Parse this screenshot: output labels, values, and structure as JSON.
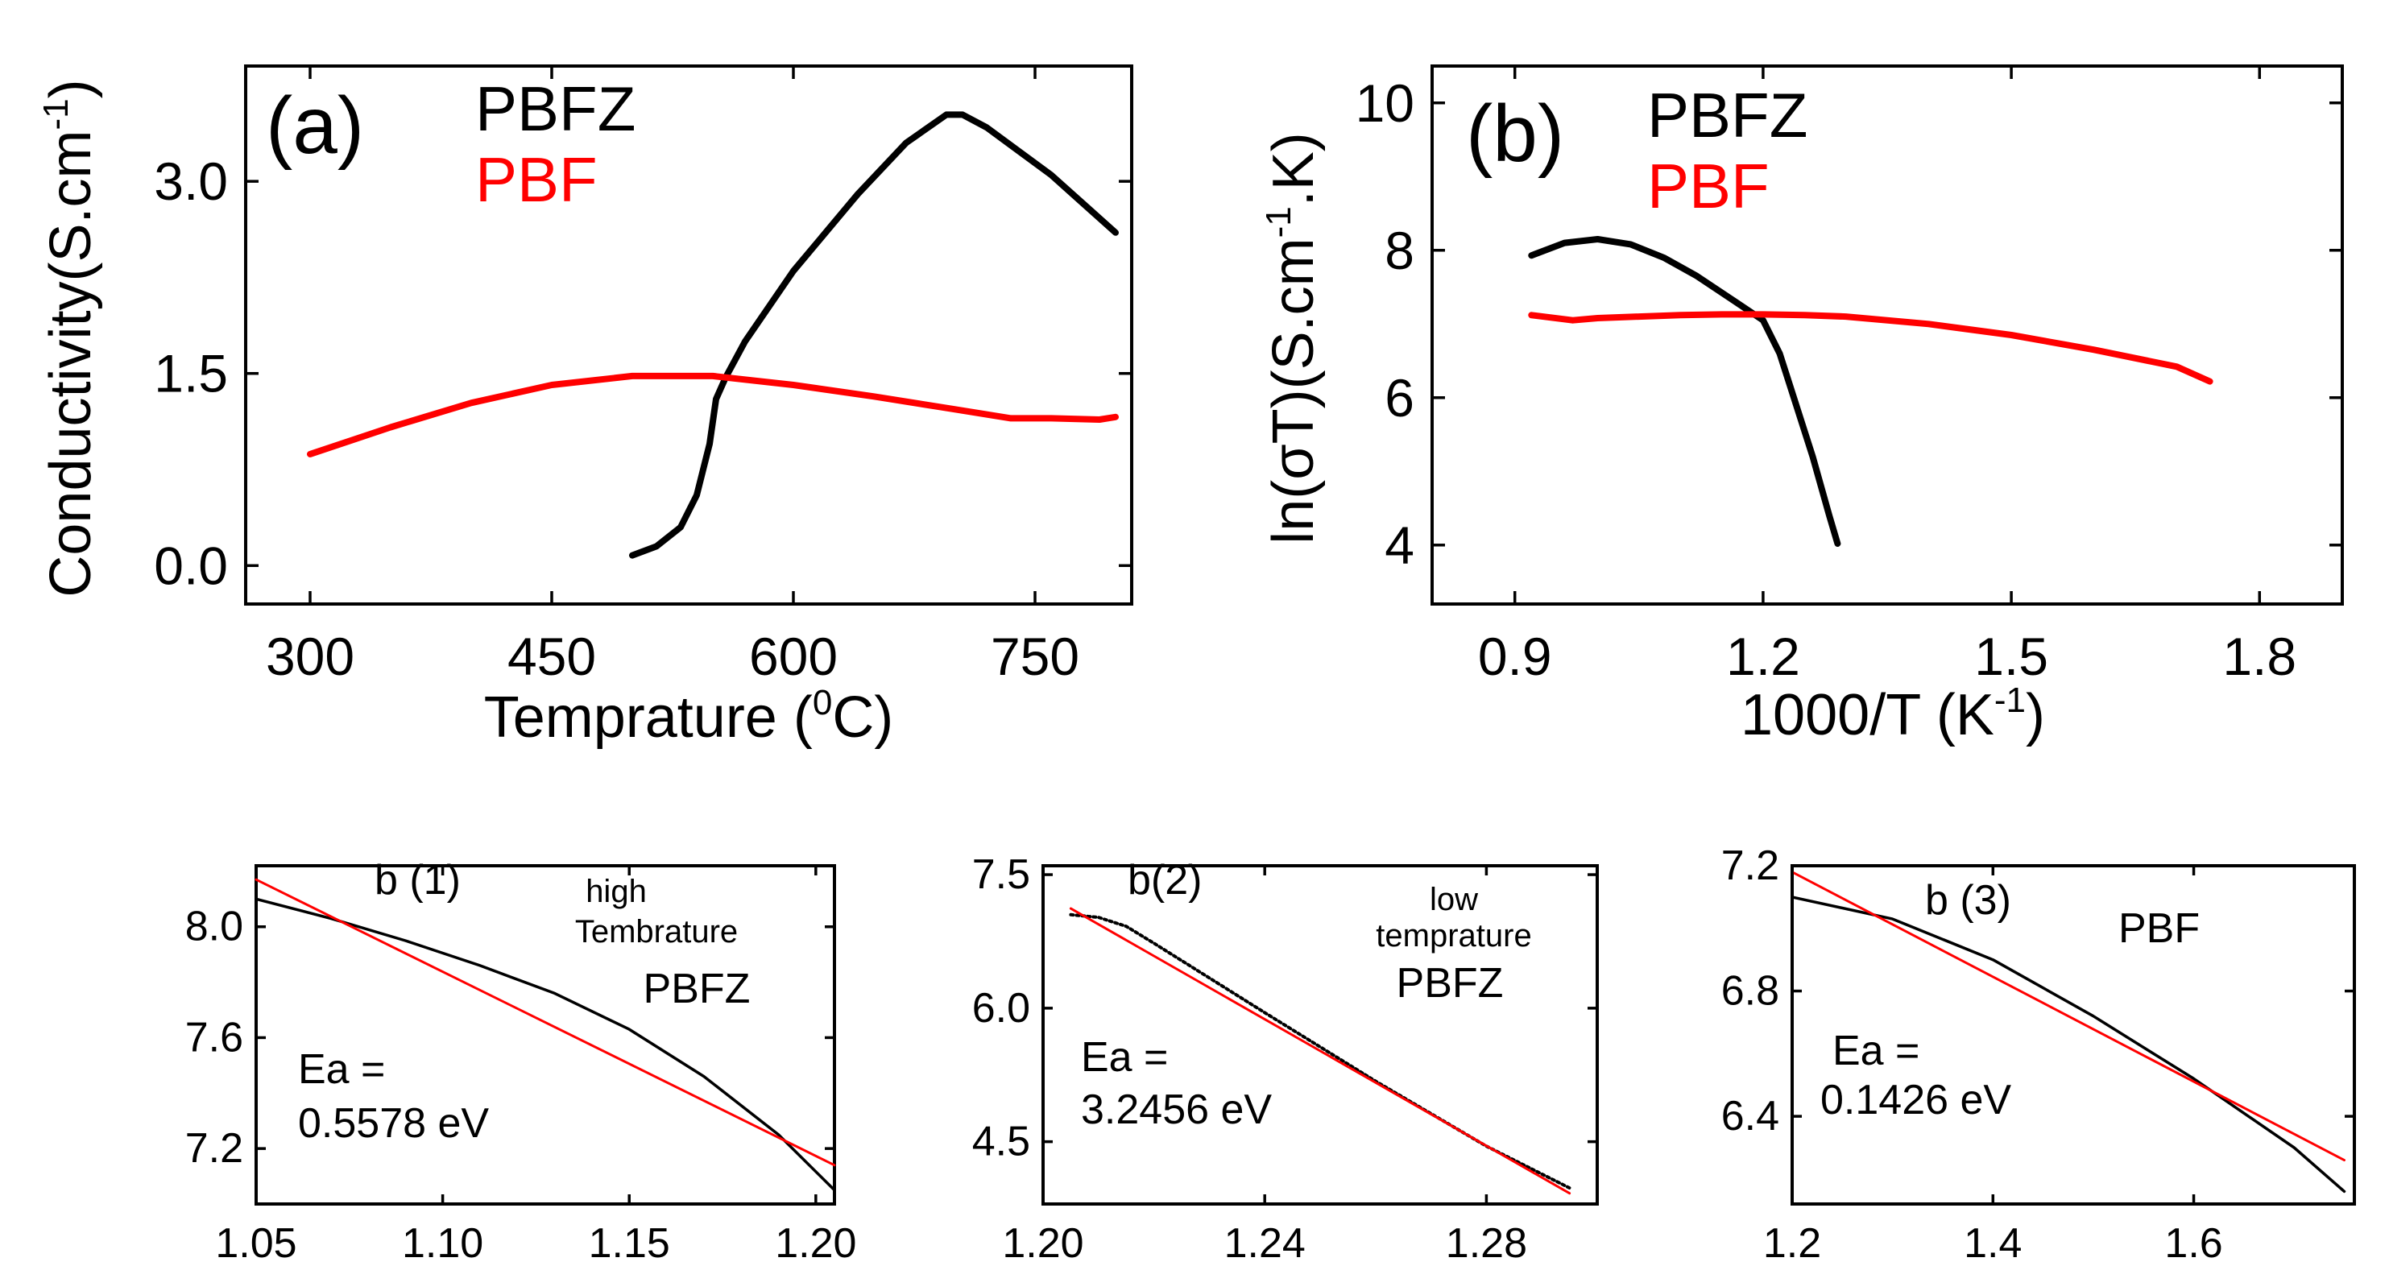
{
  "colors": {
    "pbfz": "#000000",
    "pbf": "#ff0000",
    "fit": "#ff0000",
    "frame": "#000000"
  },
  "chart_data": [
    {
      "id": "a",
      "type": "line",
      "panel_label": "(a)",
      "xlabel": "Temprature (",
      "xlabel_sup": "0",
      "xlabel_tail": "C)",
      "ylabel": "Conductivity(S.cm",
      "ylabel_sup": "-1",
      "ylabel_tail": ")",
      "xlim": [
        260,
        810
      ],
      "ylim": [
        -0.3,
        3.9
      ],
      "xticks": [
        "300",
        "450",
        "600",
        "750"
      ],
      "yticks": [
        "0.0",
        "1.5",
        "3.0"
      ],
      "legend": [
        "PBFZ",
        "PBF"
      ],
      "series": [
        {
          "name": "PBFZ",
          "color": "#000000",
          "x": [
            500,
            515,
            530,
            540,
            548,
            552,
            558,
            570,
            600,
            640,
            670,
            695,
            705,
            720,
            760,
            800
          ],
          "y": [
            0.08,
            0.15,
            0.3,
            0.55,
            0.95,
            1.3,
            1.47,
            1.75,
            2.3,
            2.9,
            3.3,
            3.52,
            3.52,
            3.42,
            3.05,
            2.6
          ]
        },
        {
          "name": "PBF",
          "color": "#ff0000",
          "x": [
            300,
            350,
            400,
            450,
            500,
            550,
            600,
            650,
            700,
            735,
            760,
            790,
            800
          ],
          "y": [
            0.87,
            1.08,
            1.27,
            1.41,
            1.48,
            1.48,
            1.41,
            1.32,
            1.22,
            1.15,
            1.15,
            1.14,
            1.16
          ]
        }
      ]
    },
    {
      "id": "b",
      "type": "line",
      "panel_label": "(b)",
      "xlabel": "1000/T (K",
      "xlabel_sup": "-1",
      "xlabel_tail": ")",
      "ylabel": "ln(σT)(S.cm",
      "ylabel_sup": "-1",
      "ylabel_tail": ".K)",
      "xlim": [
        0.8,
        1.9
      ],
      "ylim": [
        3.2,
        10.5
      ],
      "xticks": [
        "0.9",
        "1.2",
        "1.5",
        "1.8"
      ],
      "yticks": [
        "4",
        "6",
        "8",
        "10"
      ],
      "legend": [
        "PBFZ",
        "PBF"
      ],
      "series": [
        {
          "name": "PBFZ",
          "color": "#000000",
          "x": [
            0.92,
            0.96,
            1.0,
            1.04,
            1.08,
            1.12,
            1.16,
            1.2,
            1.22,
            1.24,
            1.26,
            1.28,
            1.29
          ],
          "y": [
            7.93,
            8.1,
            8.15,
            8.08,
            7.9,
            7.65,
            7.35,
            7.05,
            6.6,
            5.9,
            5.2,
            4.4,
            4.02
          ]
        },
        {
          "name": "PBF",
          "color": "#ff0000",
          "x": [
            0.92,
            0.97,
            1.0,
            1.05,
            1.1,
            1.15,
            1.2,
            1.25,
            1.3,
            1.4,
            1.5,
            1.6,
            1.7,
            1.74
          ],
          "y": [
            7.12,
            7.05,
            7.08,
            7.1,
            7.12,
            7.13,
            7.13,
            7.12,
            7.1,
            7.0,
            6.85,
            6.65,
            6.42,
            6.22
          ]
        }
      ]
    },
    {
      "id": "b1",
      "type": "line",
      "panel_label": "b (1)",
      "annotation": [
        "high",
        "Tembrature",
        "PBFZ"
      ],
      "ea": [
        "Ea =",
        "0.5578 eV"
      ],
      "xlim": [
        1.05,
        1.205
      ],
      "ylim": [
        7.0,
        8.22
      ],
      "xticks": [
        "1.05",
        "1.10",
        "1.15",
        "1.20"
      ],
      "yticks": [
        "7.2",
        "7.6",
        "8.0"
      ],
      "series": [
        {
          "name": "data",
          "color": "#000000",
          "x": [
            1.05,
            1.07,
            1.09,
            1.11,
            1.13,
            1.15,
            1.17,
            1.19,
            1.205
          ],
          "y": [
            8.1,
            8.03,
            7.95,
            7.86,
            7.76,
            7.63,
            7.46,
            7.25,
            7.05
          ]
        },
        {
          "name": "linear fit",
          "color": "#ff0000",
          "x": [
            1.05,
            1.205
          ],
          "y": [
            8.17,
            7.14
          ]
        }
      ]
    },
    {
      "id": "b2",
      "type": "line",
      "panel_label": "b(2)",
      "annotation": [
        "low",
        "temprature",
        "PBFZ"
      ],
      "ea": [
        "Ea =",
        "3.2456 eV"
      ],
      "xlim": [
        1.2,
        1.3
      ],
      "ylim": [
        3.8,
        7.6
      ],
      "xticks": [
        "1.20",
        "1.24",
        "1.28"
      ],
      "yticks": [
        "4.5",
        "6.0",
        "7.5"
      ],
      "series": [
        {
          "name": "data",
          "color": "#000000",
          "dotted": true,
          "x": [
            1.205,
            1.21,
            1.215,
            1.22,
            1.24,
            1.26,
            1.28,
            1.295
          ],
          "y": [
            7.05,
            7.02,
            6.92,
            6.73,
            5.95,
            5.18,
            4.45,
            3.98
          ]
        },
        {
          "name": "linear fit",
          "color": "#ff0000",
          "x": [
            1.205,
            1.295
          ],
          "y": [
            7.12,
            3.92
          ]
        }
      ]
    },
    {
      "id": "b3",
      "type": "line",
      "panel_label": "b (3)",
      "annotation": [
        "PBF"
      ],
      "ea": [
        "Ea =",
        "0.1426 eV"
      ],
      "xlim": [
        1.2,
        1.76
      ],
      "ylim": [
        6.12,
        7.2
      ],
      "xticks": [
        "1.2",
        "1.4",
        "1.6"
      ],
      "yticks": [
        "6.4",
        "6.8",
        "7.2"
      ],
      "series": [
        {
          "name": "data",
          "color": "#000000",
          "x": [
            1.2,
            1.3,
            1.4,
            1.5,
            1.6,
            1.7,
            1.75
          ],
          "y": [
            7.1,
            7.03,
            6.9,
            6.72,
            6.52,
            6.3,
            6.16
          ]
        },
        {
          "name": "linear fit",
          "color": "#ff0000",
          "x": [
            1.2,
            1.75
          ],
          "y": [
            7.18,
            6.26
          ]
        }
      ]
    }
  ]
}
